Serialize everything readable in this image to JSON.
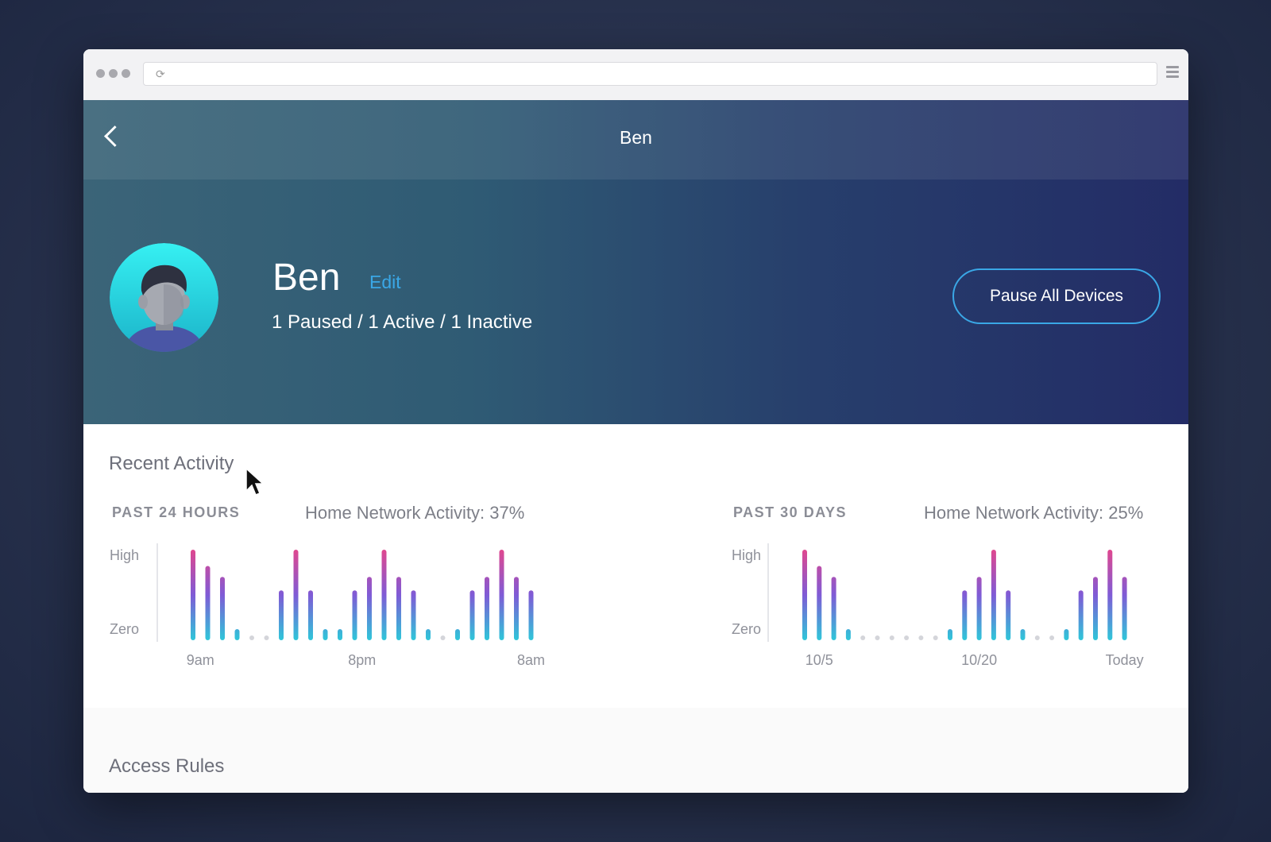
{
  "browser": {
    "url": ""
  },
  "header": {
    "title": "Ben"
  },
  "profile": {
    "name": "Ben",
    "edit_label": "Edit",
    "status": "1 Paused / 1 Active / 1 Inactive",
    "pause_button_label": "Pause All Devices"
  },
  "activity": {
    "section_title": "Recent Activity",
    "charts": [
      {
        "period_label": "PAST 24 HOURS",
        "network_label": "Home Network Activity: 37%",
        "y_high_label": "High",
        "y_zero_label": "Zero",
        "tick_labels": [
          "9am",
          "8pm",
          "8am"
        ]
      },
      {
        "period_label": "PAST 30 DAYS",
        "network_label": "Home Network Activity: 25%",
        "y_high_label": "High",
        "y_zero_label": "Zero",
        "tick_labels": [
          "10/5",
          "10/20",
          "Today"
        ]
      }
    ]
  },
  "access_rules": {
    "section_title": "Access Rules"
  },
  "colors": {
    "accent": "#3aa7e6",
    "bar_low": "#2ec7d9",
    "bar_mid": "#7f5bd6",
    "bar_high": "#e0478f",
    "dot_empty": "#d4d5da"
  },
  "chart_data": [
    {
      "type": "bar",
      "ylim": [
        0,
        1
      ],
      "ticks": [
        {
          "label": "9am",
          "index": 0.5
        },
        {
          "label": "8pm",
          "index": 11.5
        },
        {
          "label": "8am",
          "index": 23
        }
      ],
      "values": [
        1.0,
        0.82,
        0.7,
        0.12,
        0,
        0,
        0.55,
        1.0,
        0.55,
        0.12,
        0.12,
        0.55,
        0.7,
        1.0,
        0.7,
        0.55,
        0.12,
        0,
        0.12,
        0.55,
        0.7,
        1.0,
        0.7,
        0.55
      ]
    },
    {
      "type": "bar",
      "ylim": [
        0,
        1
      ],
      "ticks": [
        {
          "label": "10/5",
          "index": 1
        },
        {
          "label": "10/20",
          "index": 12
        },
        {
          "label": "Today",
          "index": 22
        }
      ],
      "values": [
        1.0,
        0.82,
        0.7,
        0.12,
        0,
        0,
        0,
        0,
        0,
        0,
        0.12,
        0.55,
        0.7,
        1.0,
        0.55,
        0.12,
        0,
        0,
        0.12,
        0.55,
        0.7,
        1.0,
        0.7
      ]
    }
  ]
}
